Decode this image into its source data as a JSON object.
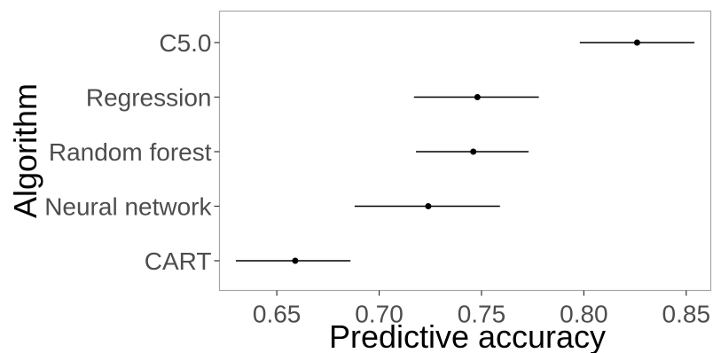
{
  "chart_data": {
    "type": "scatter",
    "subtype": "point-range (estimate with interval)",
    "xlabel": "Predictive accuracy",
    "ylabel": "Algorithm",
    "xlim": [
      0.622,
      0.862
    ],
    "x_ticks": [
      0.65,
      0.7,
      0.75,
      0.8,
      0.85
    ],
    "x_tick_labels": [
      "0.65",
      "0.70",
      "0.75",
      "0.80",
      "0.85"
    ],
    "categories": [
      "C5.0",
      "Regression",
      "Random forest",
      "Neural network",
      "CART"
    ],
    "points": [
      {
        "label": "C5.0",
        "estimate": 0.826,
        "lower": 0.798,
        "upper": 0.854
      },
      {
        "label": "Regression",
        "estimate": 0.748,
        "lower": 0.717,
        "upper": 0.778
      },
      {
        "label": "Random forest",
        "estimate": 0.746,
        "lower": 0.718,
        "upper": 0.773
      },
      {
        "label": "Neural network",
        "estimate": 0.724,
        "lower": 0.688,
        "upper": 0.759
      },
      {
        "label": "CART",
        "estimate": 0.659,
        "lower": 0.63,
        "upper": 0.686
      }
    ],
    "grid": false,
    "legend": "none",
    "colors": {
      "marks": "#000000",
      "panel_border": "#a6a6a6",
      "tick_text": "#4d4d4d"
    }
  }
}
